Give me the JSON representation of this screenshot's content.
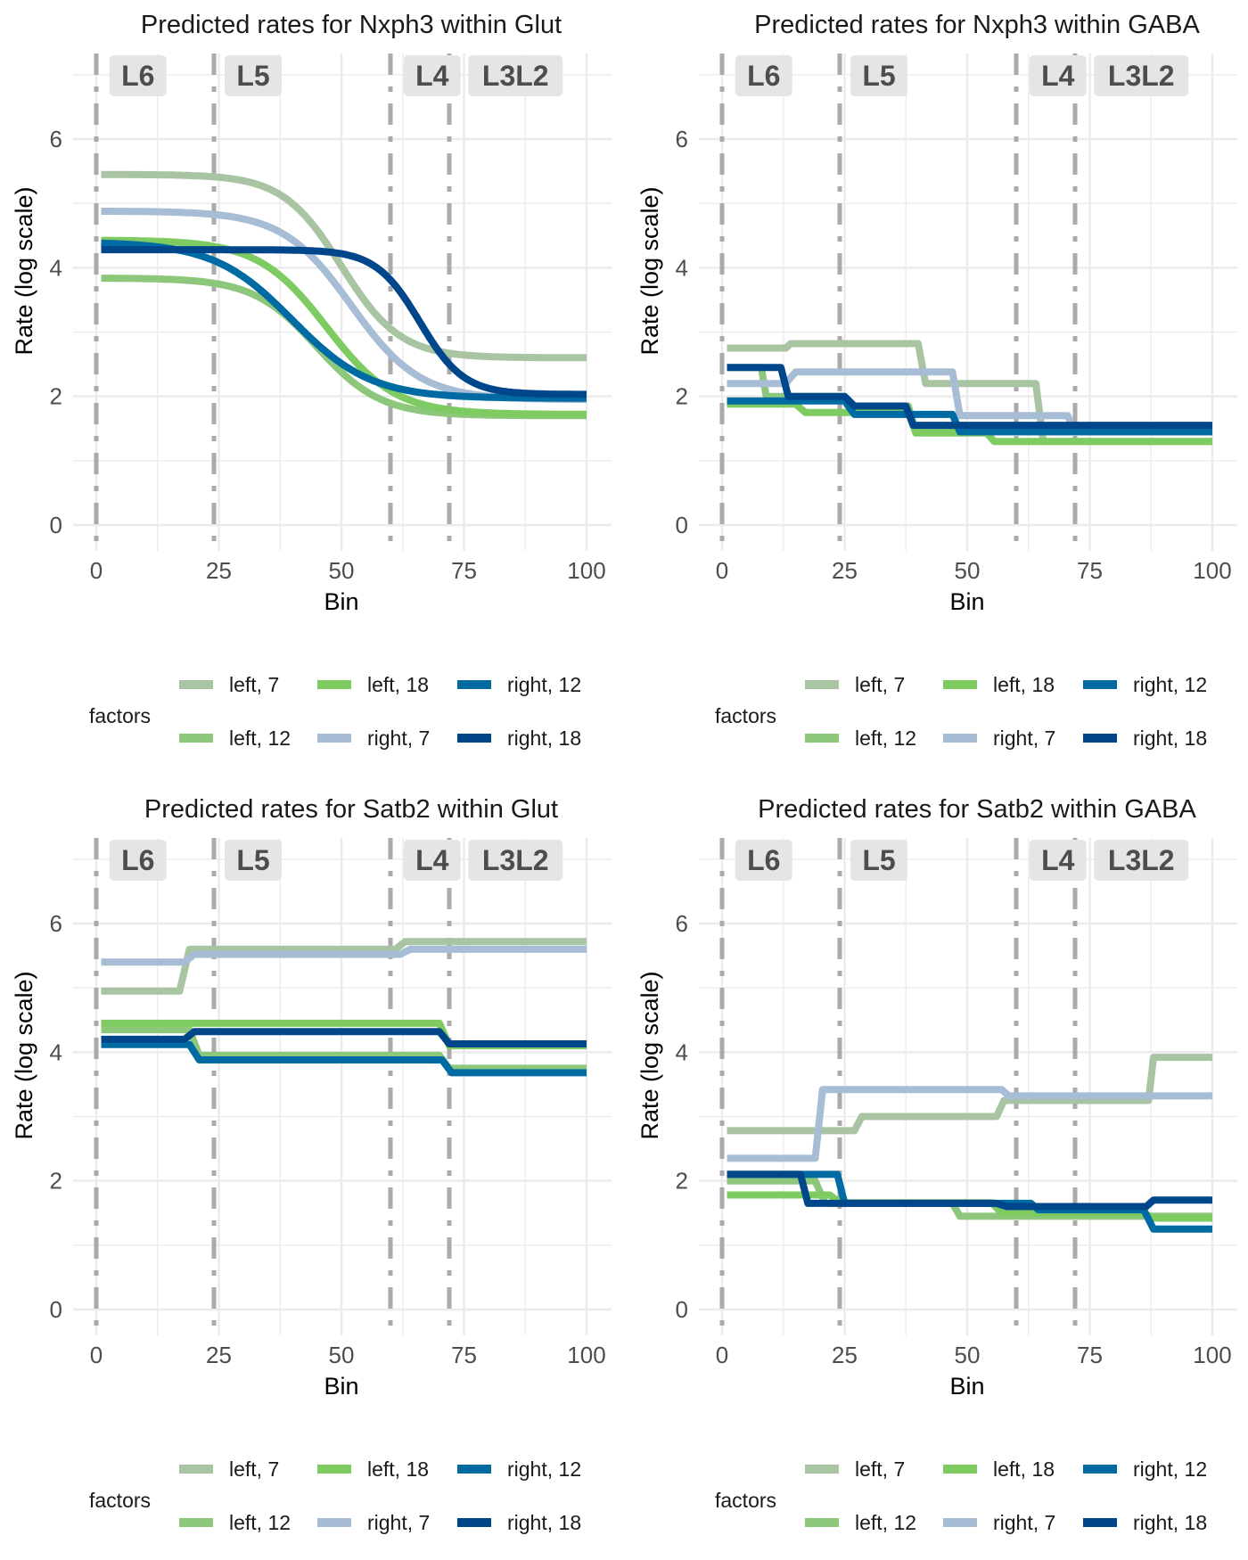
{
  "colors": {
    "left, 7": "#a8c4a2",
    "left, 12": "#8dc77c",
    "left, 18": "#7ecb62",
    "right, 7": "#a7bcd5",
    "right, 12": "#006aa3",
    "right, 18": "#00468b",
    "boundary": "#aaaaaa",
    "grid": "#ebebeb",
    "strip": "#e5e5e5"
  },
  "legend": {
    "title": "factors",
    "order": [
      "left, 7",
      "left, 18",
      "right, 12",
      "left, 12",
      "right, 7",
      "right, 18"
    ]
  },
  "chart_data": [
    {
      "type": "line",
      "title": "Predicted rates for Nxph3 within Glut",
      "xlabel": "Bin",
      "ylabel": "Rate (log scale)",
      "xlim": [
        0,
        100
      ],
      "ylim": [
        0,
        7.3
      ],
      "xticks": [
        0,
        25,
        50,
        75,
        100
      ],
      "yticks": [
        0,
        2,
        4,
        6
      ],
      "grid": true,
      "legend_position": "bottom",
      "layer_boundaries": [
        0,
        24,
        60,
        72
      ],
      "layers": [
        {
          "label": "L6",
          "x": 8.5
        },
        {
          "label": "L5",
          "x": 32
        },
        {
          "label": "L4",
          "x": 68.5
        },
        {
          "label": "L3L2",
          "x": 85.5
        }
      ],
      "curve": "logistic",
      "series": [
        {
          "name": "left, 7",
          "hi": 5.45,
          "lo": 2.6,
          "mid": 50,
          "scale": 6
        },
        {
          "name": "left, 12",
          "hi": 3.84,
          "lo": 1.7,
          "mid": 45,
          "scale": 6.5
        },
        {
          "name": "left, 18",
          "hi": 4.43,
          "lo": 1.72,
          "mid": 47,
          "scale": 7
        },
        {
          "name": "right, 7",
          "hi": 4.88,
          "lo": 1.95,
          "mid": 52,
          "scale": 7
        },
        {
          "name": "right, 12",
          "hi": 4.4,
          "lo": 1.97,
          "mid": 40,
          "scale": 8
        },
        {
          "name": "right, 18",
          "hi": 4.28,
          "lo": 2.03,
          "mid": 66,
          "scale": 4.5
        }
      ]
    },
    {
      "type": "line",
      "title": "Predicted rates for Nxph3 within GABA",
      "xlabel": "Bin",
      "ylabel": "Rate (log scale)",
      "xlim": [
        0,
        100
      ],
      "ylim": [
        0,
        7.3
      ],
      "xticks": [
        0,
        25,
        50,
        75,
        100
      ],
      "yticks": [
        0,
        2,
        4,
        6
      ],
      "grid": true,
      "legend_position": "bottom",
      "layer_boundaries": [
        0,
        24,
        60,
        72
      ],
      "layers": [
        {
          "label": "L6",
          "x": 8.5
        },
        {
          "label": "L5",
          "x": 32
        },
        {
          "label": "L4",
          "x": 68.5
        },
        {
          "label": "L3L2",
          "x": 85.5
        }
      ],
      "curve": "step",
      "series": [
        {
          "name": "left, 7",
          "steps": [
            [
              1,
              2.75
            ],
            [
              13,
              2.75
            ],
            [
              14,
              2.82
            ],
            [
              40,
              2.82
            ],
            [
              41.5,
              2.2
            ],
            [
              64,
              2.2
            ],
            [
              65.5,
              1.3
            ],
            [
              100,
              1.3
            ]
          ]
        },
        {
          "name": "left, 12",
          "steps": [
            [
              1,
              2.45
            ],
            [
              8,
              2.45
            ],
            [
              9,
              2.0
            ],
            [
              25,
              2.0
            ],
            [
              26,
              1.85
            ],
            [
              38,
              1.85
            ],
            [
              39.5,
              1.45
            ],
            [
              100,
              1.45
            ]
          ]
        },
        {
          "name": "left, 18",
          "steps": [
            [
              1,
              1.88
            ],
            [
              15,
              1.88
            ],
            [
              17,
              1.75
            ],
            [
              38,
              1.75
            ],
            [
              39.5,
              1.43
            ],
            [
              54,
              1.43
            ],
            [
              55.5,
              1.3
            ],
            [
              100,
              1.3
            ]
          ]
        },
        {
          "name": "right, 7",
          "steps": [
            [
              1,
              2.2
            ],
            [
              13,
              2.2
            ],
            [
              15,
              2.38
            ],
            [
              47,
              2.38
            ],
            [
              48.5,
              1.7
            ],
            [
              70.5,
              1.7
            ],
            [
              72,
              1.45
            ],
            [
              100,
              1.45
            ]
          ]
        },
        {
          "name": "right, 12",
          "steps": [
            [
              1,
              1.93
            ],
            [
              25,
              1.93
            ],
            [
              27,
              1.72
            ],
            [
              47,
              1.72
            ],
            [
              48.5,
              1.45
            ],
            [
              100,
              1.45
            ]
          ]
        },
        {
          "name": "right, 18",
          "steps": [
            [
              1,
              2.45
            ],
            [
              12,
              2.45
            ],
            [
              13.5,
              2.0
            ],
            [
              25,
              2.0
            ],
            [
              27,
              1.85
            ],
            [
              37.5,
              1.85
            ],
            [
              39,
              1.55
            ],
            [
              100,
              1.55
            ]
          ]
        }
      ]
    },
    {
      "type": "line",
      "title": "Predicted rates for Satb2 within Glut",
      "xlabel": "Bin",
      "ylabel": "Rate (log scale)",
      "xlim": [
        0,
        100
      ],
      "ylim": [
        0,
        7.3
      ],
      "xticks": [
        0,
        25,
        50,
        75,
        100
      ],
      "yticks": [
        0,
        2,
        4,
        6
      ],
      "grid": true,
      "legend_position": "bottom",
      "layer_boundaries": [
        0,
        24,
        60,
        72
      ],
      "layers": [
        {
          "label": "L6",
          "x": 8.5
        },
        {
          "label": "L5",
          "x": 32
        },
        {
          "label": "L4",
          "x": 68.5
        },
        {
          "label": "L3L2",
          "x": 85.5
        }
      ],
      "curve": "step",
      "series": [
        {
          "name": "left, 7",
          "steps": [
            [
              1,
              4.95
            ],
            [
              17,
              4.95
            ],
            [
              19,
              5.6
            ],
            [
              61,
              5.6
            ],
            [
              63,
              5.72
            ],
            [
              100,
              5.72
            ]
          ]
        },
        {
          "name": "left, 12",
          "steps": [
            [
              1,
              4.35
            ],
            [
              19,
              4.35
            ],
            [
              21,
              3.95
            ],
            [
              70,
              3.95
            ],
            [
              72,
              3.75
            ],
            [
              100,
              3.75
            ]
          ]
        },
        {
          "name": "left, 18",
          "steps": [
            [
              1,
              4.45
            ],
            [
              70,
              4.45
            ],
            [
              72,
              4.1
            ],
            [
              100,
              4.1
            ]
          ]
        },
        {
          "name": "right, 7",
          "steps": [
            [
              1,
              5.4
            ],
            [
              18,
              5.4
            ],
            [
              20,
              5.52
            ],
            [
              62,
              5.52
            ],
            [
              64,
              5.6
            ],
            [
              100,
              5.6
            ]
          ]
        },
        {
          "name": "right, 12",
          "steps": [
            [
              1,
              4.12
            ],
            [
              19,
              4.12
            ],
            [
              21,
              3.88
            ],
            [
              70.5,
              3.88
            ],
            [
              72.5,
              3.68
            ],
            [
              100,
              3.68
            ]
          ]
        },
        {
          "name": "right, 18",
          "steps": [
            [
              1,
              4.2
            ],
            [
              18,
              4.2
            ],
            [
              20,
              4.32
            ],
            [
              70,
              4.32
            ],
            [
              72,
              4.13
            ],
            [
              100,
              4.13
            ]
          ]
        }
      ]
    },
    {
      "type": "line",
      "title": "Predicted rates for Satb2 within GABA",
      "xlabel": "Bin",
      "ylabel": "Rate (log scale)",
      "xlim": [
        0,
        100
      ],
      "ylim": [
        0,
        7.3
      ],
      "xticks": [
        0,
        25,
        50,
        75,
        100
      ],
      "yticks": [
        0,
        2,
        4,
        6
      ],
      "grid": true,
      "legend_position": "bottom",
      "layer_boundaries": [
        0,
        24,
        60,
        72
      ],
      "layers": [
        {
          "label": "L6",
          "x": 8.5
        },
        {
          "label": "L5",
          "x": 32
        },
        {
          "label": "L4",
          "x": 68.5
        },
        {
          "label": "L3L2",
          "x": 85.5
        }
      ],
      "curve": "step",
      "series": [
        {
          "name": "left, 7",
          "steps": [
            [
              1,
              2.78
            ],
            [
              27,
              2.78
            ],
            [
              28.5,
              3.0
            ],
            [
              56,
              3.0
            ],
            [
              57.5,
              3.25
            ],
            [
              87,
              3.25
            ],
            [
              88,
              3.92
            ],
            [
              100,
              3.92
            ]
          ]
        },
        {
          "name": "left, 12",
          "steps": [
            [
              1,
              2.0
            ],
            [
              19,
              2.0
            ],
            [
              21,
              1.65
            ],
            [
              47,
              1.65
            ],
            [
              48.5,
              1.45
            ],
            [
              100,
              1.45
            ]
          ]
        },
        {
          "name": "left, 18",
          "steps": [
            [
              1,
              1.78
            ],
            [
              22,
              1.78
            ],
            [
              24,
              1.66
            ],
            [
              55,
              1.66
            ],
            [
              57,
              1.5
            ],
            [
              86,
              1.5
            ],
            [
              88,
              1.42
            ],
            [
              100,
              1.42
            ]
          ]
        },
        {
          "name": "right, 7",
          "steps": [
            [
              1,
              2.35
            ],
            [
              19,
              2.35
            ],
            [
              20.5,
              3.42
            ],
            [
              57,
              3.42
            ],
            [
              58.5,
              3.32
            ],
            [
              100,
              3.32
            ]
          ]
        },
        {
          "name": "right, 12",
          "steps": [
            [
              1,
              2.1
            ],
            [
              23.5,
              2.1
            ],
            [
              25,
              1.65
            ],
            [
              63,
              1.65
            ],
            [
              64.5,
              1.55
            ],
            [
              86,
              1.55
            ],
            [
              88,
              1.25
            ],
            [
              100,
              1.25
            ]
          ]
        },
        {
          "name": "right, 18",
          "steps": [
            [
              1,
              2.1
            ],
            [
              16,
              2.1
            ],
            [
              17.5,
              1.65
            ],
            [
              56,
              1.65
            ],
            [
              58,
              1.6
            ],
            [
              86.5,
              1.6
            ],
            [
              88,
              1.7
            ],
            [
              100,
              1.7
            ]
          ]
        }
      ]
    }
  ]
}
